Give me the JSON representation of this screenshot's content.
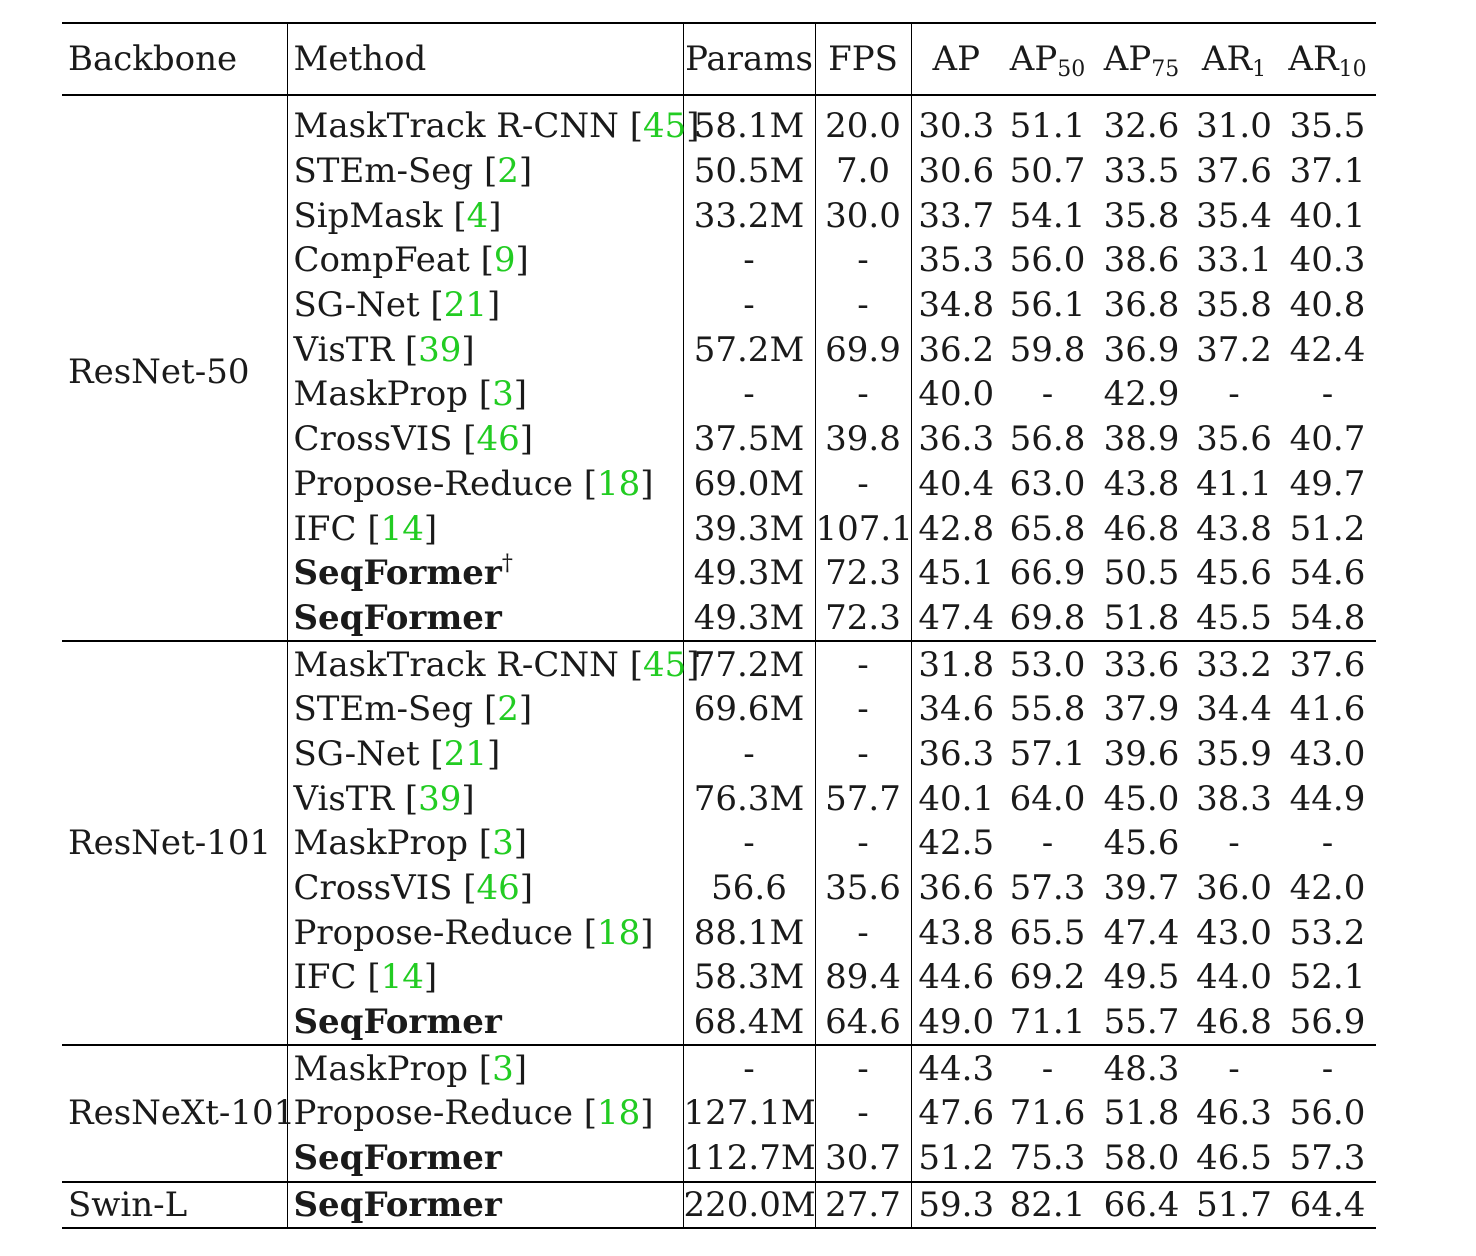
{
  "header": {
    "backbone": "Backbone",
    "method": "Method",
    "params": "Params",
    "fps": "FPS",
    "ap": "AP",
    "ap50_base": "AP",
    "ap50_sub": "50",
    "ap75_base": "AP",
    "ap75_sub": "75",
    "ar1_base": "AR",
    "ar1_sub": "1",
    "ar10_base": "AR",
    "ar10_sub": "10"
  },
  "groups": [
    {
      "backbone": "ResNet-50",
      "rows": [
        {
          "name": "MaskTrack R-CNN",
          "ref": "45",
          "bold": false,
          "dagger": "",
          "params": "58.1M",
          "fps": "20.0",
          "ap": "30.3",
          "ap50": "51.1",
          "ap75": "32.6",
          "ar1": "31.0",
          "ar10": "35.5",
          "b": []
        },
        {
          "name": "STEm-Seg",
          "ref": "2",
          "bold": false,
          "dagger": "",
          "params": "50.5M",
          "fps": "7.0",
          "ap": "30.6",
          "ap50": "50.7",
          "ap75": "33.5",
          "ar1": "37.6",
          "ar10": "37.1",
          "b": []
        },
        {
          "name": "SipMask",
          "ref": "4",
          "bold": false,
          "dagger": "",
          "params": "33.2M",
          "fps": "30.0",
          "ap": "33.7",
          "ap50": "54.1",
          "ap75": "35.8",
          "ar1": "35.4",
          "ar10": "40.1",
          "b": []
        },
        {
          "name": "CompFeat",
          "ref": "9",
          "bold": false,
          "dagger": "",
          "params": "-",
          "fps": "-",
          "ap": "35.3",
          "ap50": "56.0",
          "ap75": "38.6",
          "ar1": "33.1",
          "ar10": "40.3",
          "b": []
        },
        {
          "name": "SG-Net",
          "ref": "21",
          "bold": false,
          "dagger": "",
          "params": "-",
          "fps": "-",
          "ap": "34.8",
          "ap50": "56.1",
          "ap75": "36.8",
          "ar1": "35.8",
          "ar10": "40.8",
          "b": []
        },
        {
          "name": "VisTR",
          "ref": "39",
          "bold": false,
          "dagger": "",
          "params": "57.2M",
          "fps": "69.9",
          "ap": "36.2",
          "ap50": "59.8",
          "ap75": "36.9",
          "ar1": "37.2",
          "ar10": "42.4",
          "b": []
        },
        {
          "name": "MaskProp",
          "ref": "3",
          "bold": false,
          "dagger": "",
          "params": "-",
          "fps": "-",
          "ap": "40.0",
          "ap50": "-",
          "ap75": "42.9",
          "ar1": "-",
          "ar10": "-",
          "b": []
        },
        {
          "name": "CrossVIS",
          "ref": "46",
          "bold": false,
          "dagger": "",
          "params": "37.5M",
          "fps": "39.8",
          "ap": "36.3",
          "ap50": "56.8",
          "ap75": "38.9",
          "ar1": "35.6",
          "ar10": "40.7",
          "b": []
        },
        {
          "name": "Propose-Reduce",
          "ref": "18",
          "bold": false,
          "dagger": "",
          "params": "69.0M",
          "fps": "-",
          "ap": "40.4",
          "ap50": "63.0",
          "ap75": "43.8",
          "ar1": "41.1",
          "ar10": "49.7",
          "b": []
        },
        {
          "name": "IFC",
          "ref": "14",
          "bold": false,
          "dagger": "",
          "params": "39.3M",
          "fps": "107.1",
          "ap": "42.8",
          "ap50": "65.8",
          "ap75": "46.8",
          "ar1": "43.8",
          "ar10": "51.2",
          "b": []
        },
        {
          "name": "SeqFormer",
          "ref": "",
          "bold": true,
          "dagger": "†",
          "params": "49.3M",
          "fps": "72.3",
          "ap": "45.1",
          "ap50": "66.9",
          "ap75": "50.5",
          "ar1": "45.6",
          "ar10": "54.6",
          "b": [
            "ar1"
          ]
        },
        {
          "name": "SeqFormer",
          "ref": "",
          "bold": true,
          "dagger": "",
          "params": "49.3M",
          "fps": "72.3",
          "ap": "47.4",
          "ap50": "69.8",
          "ap75": "51.8",
          "ar1": "45.5",
          "ar10": "54.8",
          "b": [
            "ap",
            "ap50",
            "ap75",
            "ar10"
          ]
        }
      ]
    },
    {
      "backbone": "ResNet-101",
      "rows": [
        {
          "name": "MaskTrack R-CNN",
          "ref": "45",
          "bold": false,
          "dagger": "",
          "params": "77.2M",
          "fps": "-",
          "ap": "31.8",
          "ap50": "53.0",
          "ap75": "33.6",
          "ar1": "33.2",
          "ar10": "37.6",
          "b": []
        },
        {
          "name": "STEm-Seg",
          "ref": "2",
          "bold": false,
          "dagger": "",
          "params": "69.6M",
          "fps": "-",
          "ap": "34.6",
          "ap50": "55.8",
          "ap75": "37.9",
          "ar1": "34.4",
          "ar10": "41.6",
          "b": []
        },
        {
          "name": "SG-Net",
          "ref": "21",
          "bold": false,
          "dagger": "",
          "params": "-",
          "fps": "-",
          "ap": "36.3",
          "ap50": "57.1",
          "ap75": "39.6",
          "ar1": "35.9",
          "ar10": "43.0",
          "b": []
        },
        {
          "name": "VisTR",
          "ref": "39",
          "bold": false,
          "dagger": "",
          "params": "76.3M",
          "fps": "57.7",
          "ap": "40.1",
          "ap50": "64.0",
          "ap75": "45.0",
          "ar1": "38.3",
          "ar10": "44.9",
          "b": []
        },
        {
          "name": "MaskProp",
          "ref": "3",
          "bold": false,
          "dagger": "",
          "params": "-",
          "fps": "-",
          "ap": "42.5",
          "ap50": "-",
          "ap75": "45.6",
          "ar1": "-",
          "ar10": "-",
          "b": []
        },
        {
          "name": "CrossVIS",
          "ref": "46",
          "bold": false,
          "dagger": "",
          "params": "56.6",
          "fps": "35.6",
          "ap": "36.6",
          "ap50": "57.3",
          "ap75": "39.7",
          "ar1": "36.0",
          "ar10": "42.0",
          "b": []
        },
        {
          "name": "Propose-Reduce",
          "ref": "18",
          "bold": false,
          "dagger": "",
          "params": "88.1M",
          "fps": "-",
          "ap": "43.8",
          "ap50": "65.5",
          "ap75": "47.4",
          "ar1": "43.0",
          "ar10": "53.2",
          "b": []
        },
        {
          "name": "IFC",
          "ref": "14",
          "bold": false,
          "dagger": "",
          "params": "58.3M",
          "fps": "89.4",
          "ap": "44.6",
          "ap50": "69.2",
          "ap75": "49.5",
          "ar1": "44.0",
          "ar10": "52.1",
          "b": []
        },
        {
          "name": "SeqFormer",
          "ref": "",
          "bold": true,
          "dagger": "",
          "params": "68.4M",
          "fps": "64.6",
          "ap": "49.0",
          "ap50": "71.1",
          "ap75": "55.7",
          "ar1": "46.8",
          "ar10": "56.9",
          "b": [
            "ap",
            "ap50",
            "ap75",
            "ar1",
            "ar10"
          ]
        }
      ]
    },
    {
      "backbone": "ResNeXt-101",
      "rows": [
        {
          "name": "MaskProp",
          "ref": "3",
          "bold": false,
          "dagger": "",
          "params": "-",
          "fps": "-",
          "ap": "44.3",
          "ap50": "-",
          "ap75": "48.3",
          "ar1": "-",
          "ar10": "-",
          "b": []
        },
        {
          "name": "Propose-Reduce",
          "ref": "18",
          "bold": false,
          "dagger": "",
          "params": "127.1M",
          "fps": "-",
          "ap": "47.6",
          "ap50": "71.6",
          "ap75": "51.8",
          "ar1": "46.3",
          "ar10": "56.0",
          "b": []
        },
        {
          "name": "SeqFormer",
          "ref": "",
          "bold": true,
          "dagger": "",
          "params": "112.7M",
          "fps": "30.7",
          "ap": "51.2",
          "ap50": "75.3",
          "ap75": "58.0",
          "ar1": "46.5",
          "ar10": "57.3",
          "b": [
            "ap",
            "ap50",
            "ap75",
            "ar1",
            "ar10"
          ]
        }
      ]
    },
    {
      "backbone": "Swin-L",
      "rows": [
        {
          "name": "SeqFormer",
          "ref": "",
          "bold": true,
          "dagger": "",
          "params": "220.0M",
          "fps": "27.7",
          "ap": "59.3",
          "ap50": "82.1",
          "ap75": "66.4",
          "ar1": "51.7",
          "ar10": "64.4",
          "b": [
            "ap",
            "ap50",
            "ap75",
            "ar1",
            "ar10"
          ]
        }
      ]
    }
  ]
}
